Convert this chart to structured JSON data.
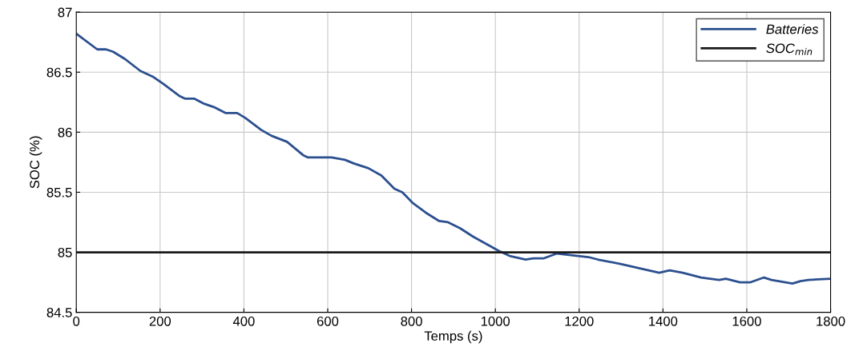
{
  "chart_data": {
    "type": "line",
    "xlabel": "Temps (s)",
    "ylabel": "SOC (%)",
    "xlim": [
      0,
      1800
    ],
    "xticks": [
      0,
      200,
      400,
      600,
      800,
      1000,
      1200,
      1400,
      1600,
      1800
    ],
    "ylim": [
      84.5,
      87
    ],
    "yticks": [
      84.5,
      85,
      85.5,
      86,
      86.5,
      87
    ],
    "grid": true,
    "legend": "top right",
    "series": [
      {
        "name": "Batteries",
        "color": "#2b4f8f",
        "x": [
          0,
          50,
          71,
          88,
          116,
          153,
          184,
          209,
          247,
          259,
          281,
          303,
          328,
          356,
          384,
          403,
          441,
          466,
          503,
          541,
          553,
          609,
          641,
          662,
          697,
          728,
          759,
          778,
          803,
          834,
          866,
          887,
          916,
          947,
          978,
          1009,
          1034,
          1072,
          1091,
          1116,
          1147,
          1172,
          1197,
          1222,
          1244,
          1303,
          1353,
          1391,
          1416,
          1447,
          1491,
          1534,
          1550,
          1584,
          1609,
          1641,
          1659,
          1709,
          1728,
          1747,
          1800
        ],
        "values": [
          86.82,
          86.69,
          86.69,
          86.67,
          86.61,
          86.51,
          86.46,
          86.4,
          86.3,
          86.28,
          86.28,
          86.24,
          86.21,
          86.16,
          86.16,
          86.12,
          86.02,
          85.97,
          85.92,
          85.81,
          85.79,
          85.79,
          85.77,
          85.74,
          85.7,
          85.64,
          85.53,
          85.5,
          85.41,
          85.33,
          85.26,
          85.25,
          85.2,
          85.13,
          85.07,
          85.01,
          84.97,
          84.94,
          84.95,
          84.95,
          84.99,
          84.98,
          84.97,
          84.96,
          84.94,
          84.9,
          84.86,
          84.83,
          84.85,
          84.83,
          84.79,
          84.77,
          84.78,
          84.75,
          84.75,
          84.79,
          84.77,
          84.74,
          84.76,
          84.77,
          84.78
        ]
      },
      {
        "name": "SOC$_{min}$",
        "color": "#1a1a1a",
        "x": [
          0,
          1800
        ],
        "values": [
          85,
          85
        ]
      }
    ]
  }
}
